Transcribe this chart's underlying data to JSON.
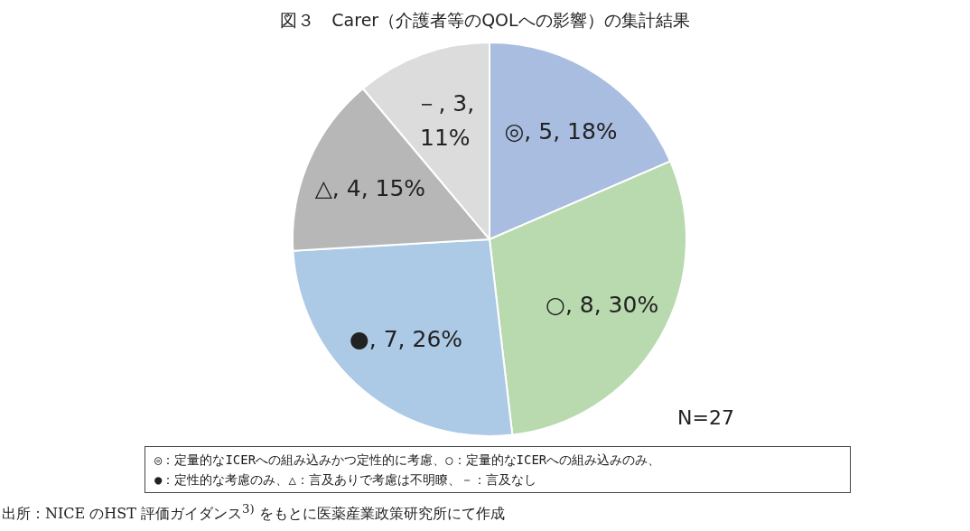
{
  "chart_data": {
    "type": "pie",
    "title": "図３　Carer（介護者等のQOLへの影響）の集計結果",
    "categories": [
      "◎",
      "○",
      "●",
      "△",
      "－"
    ],
    "values": [
      5,
      8,
      7,
      4,
      3
    ],
    "colors": [
      "#a9bde0",
      "#b9d9ae",
      "#acc9e6",
      "#b7b7b7",
      "#dcdcdc"
    ],
    "value_labels": [
      "5, 18%",
      "8, 30%",
      "7, 26%",
      "4, 15%",
      "3, 11%"
    ],
    "legend": false,
    "annotations": [
      "N=27",
      "◎：定量的なICERへの組み込みかつ定性的に考慮、○：定量的なICERへの組み込みのみ、",
      "●：定性的な考慮のみ、△：言及ありで考慮は不明瞭、－：言及なし",
      "出所：NICE のHST 評価ガイダンス$^{3)}$ をもとに医薬産業政策研究所にて作成"
    ]
  }
}
